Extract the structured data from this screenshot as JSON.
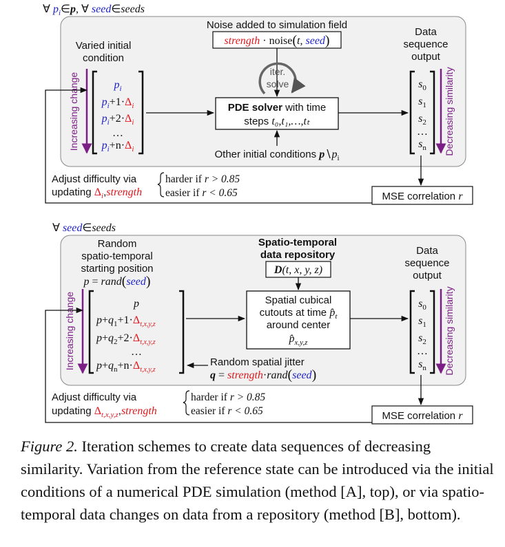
{
  "colors": {
    "red": "#e0191e",
    "blue": "#1d22c8",
    "purple": "#7b1f86",
    "panel": "#f1f1f1",
    "stroke": "#111111"
  },
  "top": {
    "quantifier": {
      "pre": "∀",
      "p": "p",
      "sub_i": "i",
      "elem": "∈",
      "bp": "p",
      "comma": ", ∀",
      "seed": "seed",
      "elem2": "∈",
      "seeds": "seeds"
    },
    "noise_title": "Noise added to simulation field",
    "noise_formula": {
      "strength": "strength",
      "dot": "·",
      "noise": "noise",
      "lp": "(",
      "t": "t",
      ",": ",",
      "seed": "seed",
      "rp": ")"
    },
    "varied_label_1": "Varied initial",
    "varied_label_2": "condition",
    "increasing": "Increasing change",
    "vector": [
      {
        "a": "p",
        "sub": "i",
        "rest": "",
        "delta": ""
      },
      {
        "a": "p",
        "sub": "i",
        "rest": "+1·",
        "delta": "Δ",
        "dsub": "i"
      },
      {
        "a": "p",
        "sub": "i",
        "rest": "+2·",
        "delta": "Δ",
        "dsub": "i"
      },
      {
        "a": "…"
      },
      {
        "a": "p",
        "sub": "i",
        "rest": "+n·",
        "delta": "Δ",
        "dsub": "i"
      }
    ],
    "iter_1": "iter.",
    "iter_2": "solve",
    "solver_bold": "PDE solver",
    "solver_rest": " with time",
    "steps_label": "steps",
    "steps_formula": "t₀,t₁,…,tₜ",
    "other_label": "Other initial conditions",
    "other_formula_p": "p",
    "other_formula_rest": "∖",
    "other_formula_pi": "p",
    "output_1": "Data",
    "output_2": "sequence",
    "output_3": "output",
    "decreasing": "Decreasing similarity",
    "seq": [
      "s",
      "s",
      "s",
      "…",
      "s"
    ],
    "seq_sub": [
      "0",
      "1",
      "2",
      "",
      "n"
    ],
    "mse": "MSE correlation",
    "mse_r": "r",
    "adjust_1": "Adjust difficulty via",
    "adjust_2": "updating",
    "adjust_delta": "Δ",
    "adjust_delta_sub": "i",
    "adjust_comma": ",",
    "adjust_strength": "strength",
    "harder": "harder",
    "harder_if": "if",
    "harder_cond": "r > 0.85",
    "easier": "easier",
    "easier_if": "if",
    "easier_cond": "r < 0.65"
  },
  "bottom": {
    "quantifier": {
      "pre": "∀",
      "seed": "seed",
      "elem": "∈",
      "seeds": "seeds"
    },
    "random_1": "Random",
    "random_2": "spatio-temporal",
    "random_3": "starting position",
    "random_formula": {
      "p": "p",
      "eq": " = ",
      "rand": "rand",
      "lp": "(",
      "seed": "seed",
      "rp": ")"
    },
    "repo_1": "Spatio-temporal",
    "repo_2": "data repository",
    "repo_formula": {
      "D": "D",
      "args": "(t, x, y, z)"
    },
    "increasing": "Increasing change",
    "vector": [
      {
        "a": "p"
      },
      {
        "a": "p",
        "plus": "+",
        "q": "q",
        "qsub": "1",
        "rest": "+1·",
        "delta": "Δ",
        "dsub": "t,x,y,z"
      },
      {
        "a": "p",
        "plus": "+",
        "q": "q",
        "qsub": "2",
        "rest": "+2·",
        "delta": "Δ",
        "dsub": "t,x,y,z"
      },
      {
        "a": "…"
      },
      {
        "a": "p",
        "plus": "+",
        "q": "q",
        "qsub": "n",
        "rest": "+n·",
        "delta": "Δ",
        "dsub": "t,x,y,z"
      }
    ],
    "cutouts_1": "Spatial cubical",
    "cutouts_2": "cutouts at time",
    "cutouts_pt": "p̂",
    "cutouts_pt_sub": "t",
    "cutouts_3": "around center",
    "cutouts_center": "p̂",
    "cutouts_center_sub": "x,y,z",
    "jitter_label": "Random spatial jitter",
    "jitter_formula": {
      "q": "q",
      "eq": " = ",
      "strength": "strength",
      "dot": "·",
      "rand": "rand",
      "lp": "(",
      "seed": "seed",
      "rp": ")"
    },
    "output_1": "Data",
    "output_2": "sequence",
    "output_3": "output",
    "decreasing": "Decreasing similarity",
    "seq": [
      "s",
      "s",
      "s",
      "…",
      "s"
    ],
    "seq_sub": [
      "0",
      "1",
      "2",
      "",
      "n"
    ],
    "mse": "MSE correlation",
    "mse_r": "r",
    "adjust_1": "Adjust difficulty via",
    "adjust_2": "updating",
    "adjust_delta": "Δ",
    "adjust_delta_sub": "t,x,y,z",
    "adjust_comma": ",",
    "adjust_strength": "strength",
    "harder": "harder",
    "harder_if": "if",
    "harder_cond": "r > 0.85",
    "easier": "easier",
    "easier_if": "if",
    "easier_cond": "r < 0.65"
  },
  "caption": {
    "lead": "Figure 2.",
    "text": " Iteration schemes to create data sequences of decreasing similarity. Variation from the reference state can be introduced via the initial conditions of a numerical PDE simulation (method [A], top), or via spatio-temporal data changes on data from a repository (method [B], bottom)."
  }
}
